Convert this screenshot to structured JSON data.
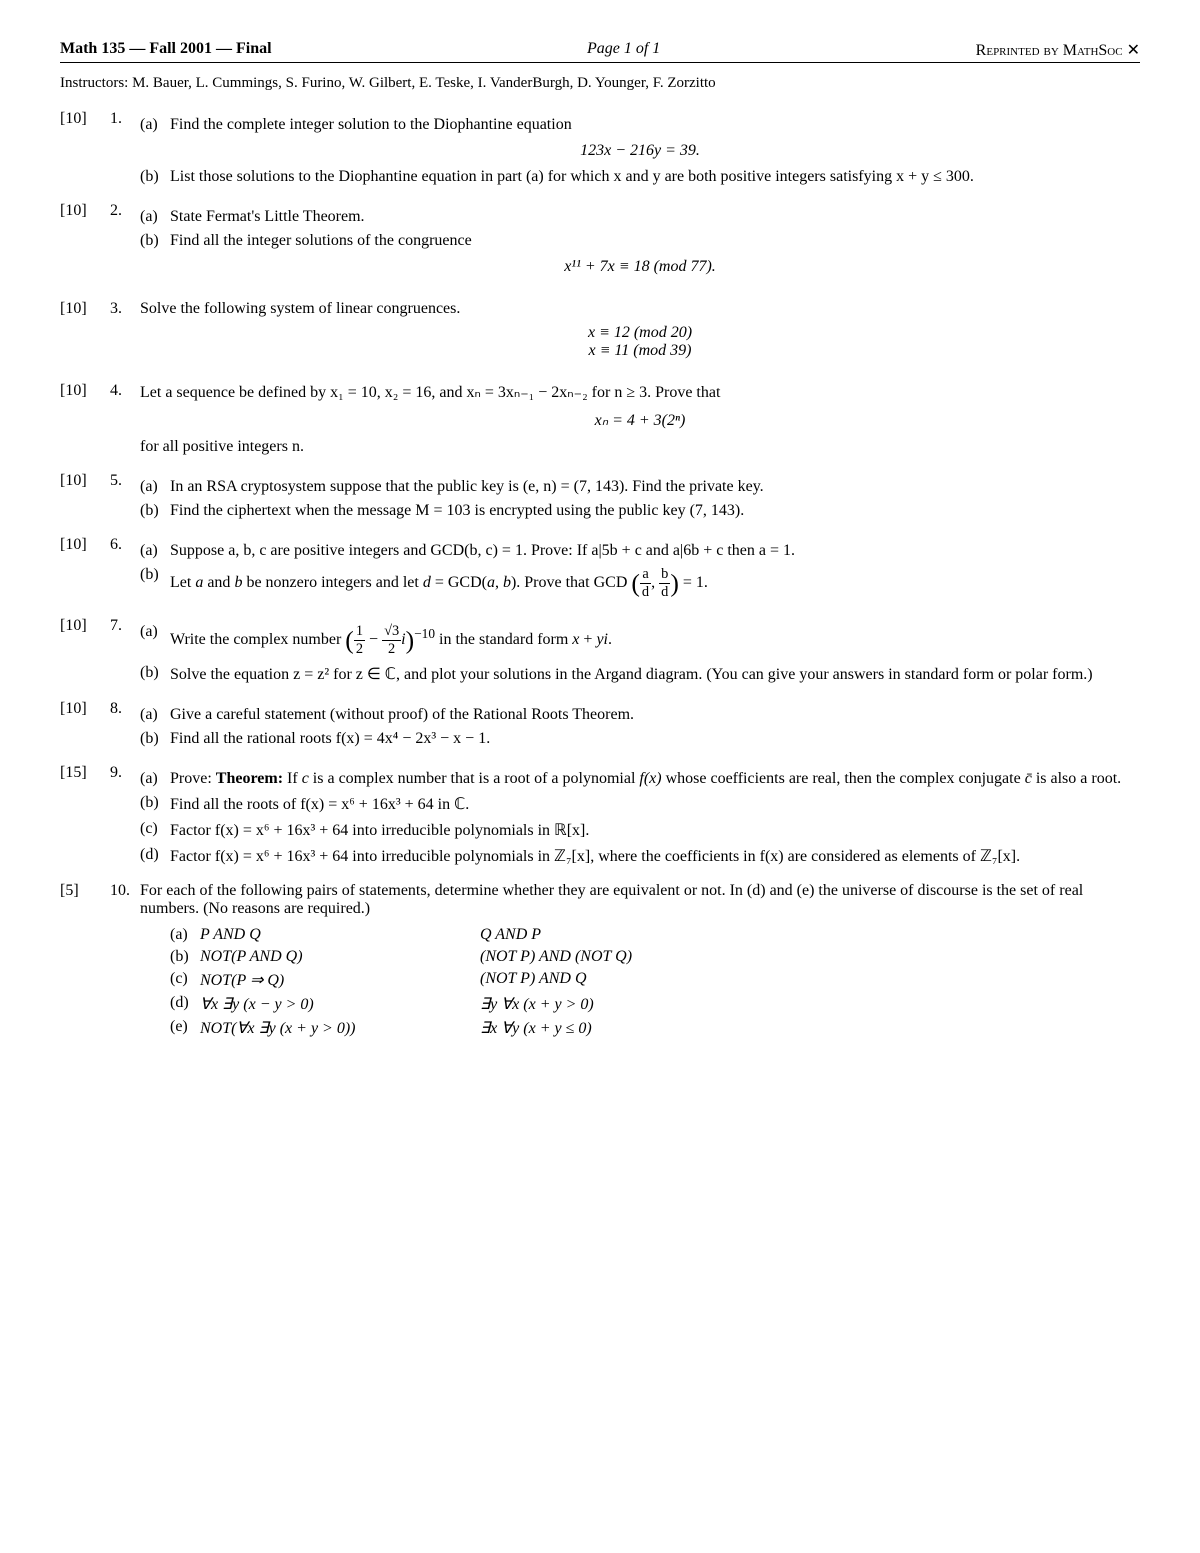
{
  "header": {
    "left": "Math 135 — Fall 2001 — Final",
    "center": "Page 1 of 1",
    "right": "Reprinted by MathSoc ✕"
  },
  "instructors": "Instructors: M. Bauer, L. Cummings, S. Furino, W. Gilbert, E. Teske, I. VanderBurgh, D. Younger, F. Zorzitto",
  "problems": [
    {
      "points": "[10]",
      "num": "1.",
      "parts": [
        {
          "label": "(a)",
          "text": "Find the complete integer solution to the Diophantine equation"
        },
        {
          "eq": "123x − 216y = 39."
        },
        {
          "label": "(b)",
          "text": "List those solutions to the Diophantine equation in part (a) for which x and y are both positive integers satisfying x + y ≤ 300."
        }
      ]
    },
    {
      "points": "[10]",
      "num": "2.",
      "parts": [
        {
          "label": "(a)",
          "text": "State Fermat's Little Theorem."
        },
        {
          "label": "(b)",
          "text": "Find all the integer solutions of the congruence"
        },
        {
          "eq": "x¹¹ + 7x ≡ 18   (mod 77)."
        }
      ]
    },
    {
      "points": "[10]",
      "num": "3.",
      "lead": "Solve the following system of linear congruences.",
      "parts": [
        {
          "eq": "x ≡ 12   (mod 20)"
        },
        {
          "eq": "x ≡ 11   (mod 39)"
        }
      ]
    },
    {
      "points": "[10]",
      "num": "4.",
      "lead": "Let a sequence be defined by x₁ = 10, x₂ = 16, and xₙ = 3xₙ₋₁ − 2xₙ₋₂ for n ≥ 3. Prove that",
      "parts": [
        {
          "eq": "xₙ = 4 + 3(2ⁿ)"
        }
      ],
      "trail": "for all positive integers n."
    },
    {
      "points": "[10]",
      "num": "5.",
      "parts": [
        {
          "label": "(a)",
          "text": "In an RSA cryptosystem suppose that the public key is (e, n) = (7, 143). Find the private key."
        },
        {
          "label": "(b)",
          "text": "Find the ciphertext when the message M = 103 is encrypted using the public key (7, 143)."
        }
      ]
    },
    {
      "points": "[10]",
      "num": "6.",
      "parts": [
        {
          "label": "(a)",
          "text": "Suppose a, b, c are positive integers and GCD(b, c) = 1. Prove: If a|5b + c and a|6b + c then a = 1."
        },
        {
          "label": "(b)",
          "text_html": "Let <i>a</i> and <i>b</i> be nonzero integers and let <i>d</i> = GCD(<i>a</i>, <i>b</i>). Prove that GCD <span class='paren-big'>(</span><span class='frac'><span class='num'>a</span><span class='den'>d</span></span>, <span class='frac'><span class='num'>b</span><span class='den'>d</span></span><span class='paren-big'>)</span> = 1."
        }
      ]
    },
    {
      "points": "[10]",
      "num": "7.",
      "parts": [
        {
          "label": "(a)",
          "text_html": "Write the complex number <span class='paren-big'>(</span><span class='frac'><span class='num'>1</span><span class='den'>2</span></span> − <span class='frac'><span class='num'>√3</span><span class='den'>2</span></span><i>i</i><span class='paren-big'>)</span><sup>−10</sup> in the standard form <i>x</i> + <i>yi</i>."
        },
        {
          "label": "(b)",
          "text": "Solve the equation z = z² for z ∈ ℂ, and plot your solutions in the Argand diagram. (You can give your answers in standard form or polar form.)"
        }
      ]
    },
    {
      "points": "[10]",
      "num": "8.",
      "parts": [
        {
          "label": "(a)",
          "text": "Give a careful statement (without proof) of the Rational Roots Theorem."
        },
        {
          "label": "(b)",
          "text": "Find all the rational roots f(x) = 4x⁴ − 2x³ − x − 1."
        }
      ]
    },
    {
      "points": "[15]",
      "num": "9.",
      "parts": [
        {
          "label": "(a)",
          "text_html": "Prove: <b>Theorem:</b> If <i>c</i> is a complex number that is a root of a polynomial <i>f(x)</i> whose coefficients are real, then the complex conjugate <i>c̄</i> is also a root."
        },
        {
          "label": "(b)",
          "text": "Find all the roots of f(x) = x⁶ + 16x³ + 64 in ℂ."
        },
        {
          "label": "(c)",
          "text": "Factor f(x) = x⁶ + 16x³ + 64 into irreducible polynomials in ℝ[x]."
        },
        {
          "label": "(d)",
          "text": "Factor f(x) = x⁶ + 16x³ + 64 into irreducible polynomials in ℤ₇[x], where the coefficients in f(x) are considered as elements of ℤ₇[x]."
        }
      ]
    },
    {
      "points": "[5]",
      "num": "10.",
      "lead": "For each of the following pairs of statements, determine whether they are equivalent or not. In (d) and (e) the universe of discourse is the set of real numbers. (No reasons are required.)",
      "table": [
        {
          "l": "(a)",
          "a": "P AND Q",
          "b": "Q AND P"
        },
        {
          "l": "(b)",
          "a": "NOT(P AND Q)",
          "b": "(NOT P) AND (NOT Q)"
        },
        {
          "l": "(c)",
          "a": "NOT(P ⇒ Q)",
          "b": "(NOT P) AND Q"
        },
        {
          "l": "(d)",
          "a": "∀x ∃y (x − y > 0)",
          "b": "∃y ∀x (x + y > 0)"
        },
        {
          "l": "(e)",
          "a": "NOT(∀x ∃y (x + y > 0))",
          "b": "∃x ∀y (x + y ≤ 0)"
        }
      ]
    }
  ]
}
